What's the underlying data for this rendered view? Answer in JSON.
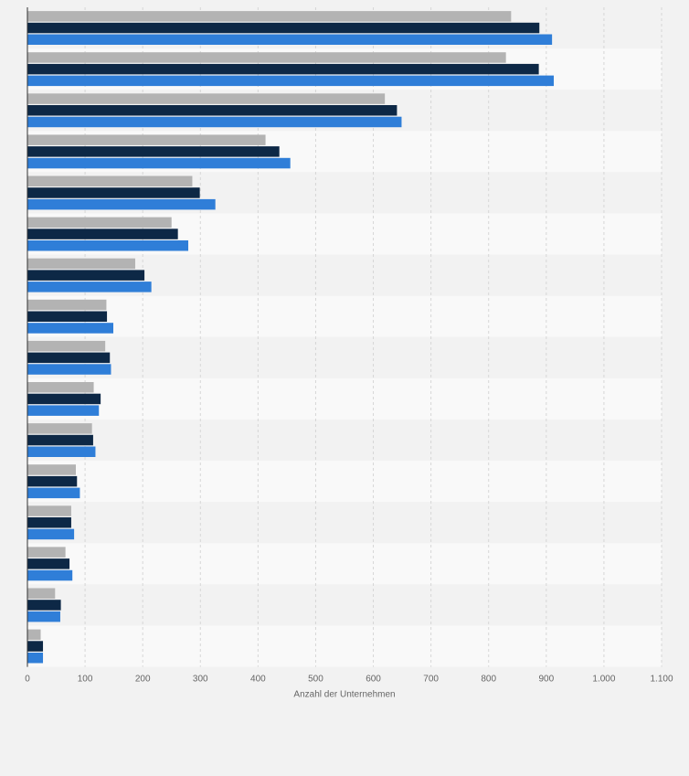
{
  "chart_data": {
    "type": "bar",
    "orientation": "horizontal",
    "xlabel": "Anzahl der Unternehmen",
    "ylabel": "",
    "xlim": [
      0,
      1100
    ],
    "x_ticks": [
      0,
      100,
      200,
      300,
      400,
      500,
      600,
      700,
      800,
      900,
      1000,
      1100
    ],
    "x_tick_labels": [
      "0",
      "100",
      "200",
      "300",
      "400",
      "500",
      "600",
      "700",
      "800",
      "900",
      "1.000",
      "1.100"
    ],
    "grid": true,
    "category_count": 16,
    "series": [
      {
        "color": "#b3b3b3",
        "values": [
          839,
          830,
          620,
          413,
          286,
          250,
          187,
          137,
          135,
          115,
          112,
          84,
          76,
          66,
          48,
          23
        ]
      },
      {
        "color": "#0d2846",
        "values": [
          888,
          887,
          641,
          437,
          299,
          261,
          203,
          138,
          143,
          127,
          114,
          86,
          76,
          73,
          58,
          27
        ]
      },
      {
        "color": "#2f7ed8",
        "values": [
          910,
          913,
          649,
          456,
          326,
          279,
          215,
          149,
          145,
          124,
          118,
          91,
          81,
          78,
          57,
          27
        ]
      }
    ]
  }
}
